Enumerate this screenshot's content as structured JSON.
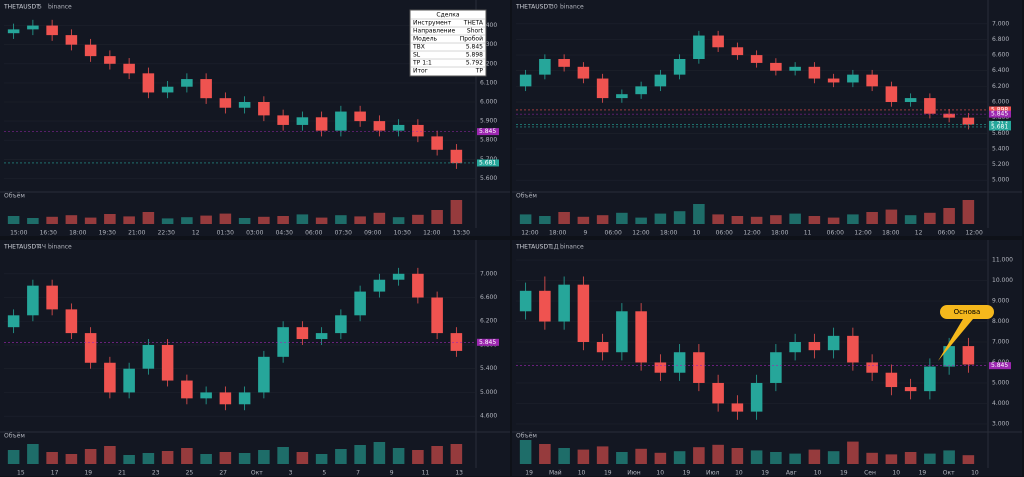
{
  "chart_data": [
    {
      "type": "candlestick",
      "symbol": "THETAUSDT",
      "interval": "5",
      "exchange": "binance",
      "volume_label": "Объём",
      "up_color": "#26a69a",
      "down_color": "#ef5350",
      "open": [
        6.36,
        6.38,
        6.4,
        6.35,
        6.3,
        6.24,
        6.2,
        6.15,
        6.05,
        6.08,
        6.12,
        6.02,
        5.97,
        6.0,
        5.93,
        5.88,
        5.92,
        5.85,
        5.95,
        5.9,
        5.85,
        5.88,
        5.82,
        5.75
      ],
      "high": [
        6.41,
        6.43,
        6.43,
        6.38,
        6.33,
        6.27,
        6.23,
        6.18,
        6.11,
        6.15,
        6.15,
        6.05,
        6.03,
        6.03,
        5.96,
        5.95,
        5.95,
        5.98,
        5.98,
        5.93,
        5.91,
        5.91,
        5.85,
        5.78
      ],
      "low": [
        6.33,
        6.35,
        6.32,
        6.27,
        6.21,
        6.17,
        6.12,
        6.02,
        6.02,
        6.05,
        5.99,
        5.94,
        5.94,
        5.9,
        5.85,
        5.85,
        5.82,
        5.82,
        5.87,
        5.82,
        5.82,
        5.79,
        5.72,
        5.65
      ],
      "close": [
        6.38,
        6.4,
        6.35,
        6.3,
        6.24,
        6.2,
        6.15,
        6.05,
        6.08,
        6.12,
        6.02,
        5.97,
        6.0,
        5.93,
        5.88,
        5.92,
        5.85,
        5.95,
        5.9,
        5.85,
        5.88,
        5.82,
        5.75,
        5.68
      ],
      "volume": [
        20,
        15,
        18,
        22,
        16,
        25,
        19,
        30,
        14,
        17,
        21,
        26,
        15,
        18,
        20,
        24,
        16,
        22,
        19,
        28,
        17,
        23,
        35,
        60
      ],
      "volume_ylim": [
        0,
        70
      ],
      "ylim": [
        5.55,
        6.45
      ],
      "yticks": [
        {
          "value": 5.6,
          "label": "5.600"
        },
        {
          "value": 5.7,
          "label": "5.700"
        },
        {
          "value": 5.8,
          "label": "5.800"
        },
        {
          "value": 5.9,
          "label": "5.900"
        },
        {
          "value": 6.0,
          "label": "6.000"
        },
        {
          "value": 6.1,
          "label": "6.100"
        },
        {
          "value": 6.2,
          "label": "6.200"
        },
        {
          "value": 6.3,
          "label": "6.300"
        },
        {
          "value": 6.4,
          "label": "6.400"
        }
      ],
      "price_labels": [
        {
          "value": 5.845,
          "label": "5.845",
          "color": "#9c27b0"
        },
        {
          "value": 5.681,
          "label": "5.681",
          "color": "#26a69a"
        }
      ],
      "x_labels": [
        "15:00",
        "16:30",
        "18:00",
        "19:30",
        "21:00",
        "22:30",
        "12",
        "01:30",
        "03:00",
        "04:30",
        "06:00",
        "07:30",
        "09:00",
        "10:30",
        "12:00",
        "13:30"
      ],
      "table": {
        "title": "Сделка",
        "rows": [
          [
            "Инструмент",
            "THETA"
          ],
          [
            "Направление",
            "Short"
          ],
          [
            "Модель",
            "Пробой"
          ],
          [
            "ТВХ",
            "5.845"
          ],
          [
            "SL",
            "5.898"
          ],
          [
            "TP 1:1",
            "5.792"
          ],
          [
            "Итог",
            "TP"
          ]
        ]
      }
    },
    {
      "type": "candlestick",
      "symbol": "THETAUSDT",
      "interval": "30",
      "exchange": "binance",
      "volume_label": "Объём",
      "up_color": "#26a69a",
      "down_color": "#ef5350",
      "open": [
        6.2,
        6.35,
        6.55,
        6.45,
        6.3,
        6.05,
        6.1,
        6.2,
        6.35,
        6.55,
        6.85,
        6.7,
        6.6,
        6.5,
        6.4,
        6.45,
        6.3,
        6.25,
        6.35,
        6.2,
        6.0,
        6.05,
        5.85,
        5.8
      ],
      "high": [
        6.41,
        6.61,
        6.61,
        6.51,
        6.36,
        6.16,
        6.26,
        6.41,
        6.61,
        6.91,
        6.91,
        6.76,
        6.66,
        6.56,
        6.51,
        6.51,
        6.36,
        6.41,
        6.41,
        6.26,
        6.11,
        6.11,
        5.91,
        5.86
      ],
      "low": [
        6.14,
        6.29,
        6.39,
        6.24,
        5.99,
        5.99,
        6.04,
        6.14,
        6.29,
        6.49,
        6.64,
        6.54,
        6.44,
        6.34,
        6.34,
        6.24,
        6.19,
        6.19,
        6.14,
        5.94,
        5.94,
        5.79,
        5.74,
        5.65
      ],
      "close": [
        6.35,
        6.55,
        6.45,
        6.3,
        6.05,
        6.1,
        6.2,
        6.35,
        6.55,
        6.85,
        6.7,
        6.6,
        6.5,
        6.4,
        6.45,
        6.3,
        6.25,
        6.35,
        6.2,
        6.0,
        6.05,
        5.85,
        5.8,
        5.71
      ],
      "volume": [
        12,
        10,
        15,
        9,
        11,
        14,
        8,
        13,
        16,
        25,
        12,
        10,
        9,
        11,
        13,
        10,
        8,
        12,
        15,
        18,
        11,
        14,
        20,
        30
      ],
      "volume_ylim": [
        0,
        35
      ],
      "ylim": [
        4.9,
        7.1
      ],
      "yticks": [
        {
          "value": 5.0,
          "label": "5.000"
        },
        {
          "value": 5.2,
          "label": "5.200"
        },
        {
          "value": 5.4,
          "label": "5.400"
        },
        {
          "value": 5.6,
          "label": "5.600"
        },
        {
          "value": 5.8,
          "label": "5.800"
        },
        {
          "value": 6.0,
          "label": "6.000"
        },
        {
          "value": 6.2,
          "label": "6.200"
        },
        {
          "value": 6.4,
          "label": "6.400"
        },
        {
          "value": 6.6,
          "label": "6.600"
        },
        {
          "value": 6.8,
          "label": "6.800"
        },
        {
          "value": 7.0,
          "label": "7.000"
        }
      ],
      "price_labels": [
        {
          "value": 5.898,
          "label": "5.898",
          "color": "#ef5350"
        },
        {
          "value": 5.845,
          "label": "5.845",
          "color": "#9c27b0"
        },
        {
          "value": 5.714,
          "label": "5.714",
          "color": "#26a69a"
        },
        {
          "value": 5.681,
          "label": "5.681",
          "color": "#26a69a"
        }
      ],
      "x_labels": [
        "12:00",
        "18:00",
        "9",
        "06:00",
        "12:00",
        "18:00",
        "10",
        "06:00",
        "12:00",
        "18:00",
        "11",
        "06:00",
        "12:00",
        "18:00",
        "12",
        "06:00",
        "12:00"
      ]
    },
    {
      "type": "candlestick",
      "symbol": "THETAUSDT",
      "interval": "4Ч",
      "exchange": "binance",
      "volume_label": "Объём",
      "up_color": "#26a69a",
      "down_color": "#ef5350",
      "open": [
        6.1,
        6.3,
        6.8,
        6.4,
        6.0,
        5.5,
        5.0,
        5.4,
        5.8,
        5.2,
        4.9,
        5.0,
        4.8,
        5.0,
        5.6,
        6.1,
        5.9,
        6.0,
        6.3,
        6.7,
        6.9,
        7.0,
        6.6,
        6.0
      ],
      "high": [
        6.4,
        6.9,
        6.9,
        6.5,
        6.1,
        5.6,
        5.5,
        5.9,
        5.9,
        5.3,
        5.1,
        5.1,
        5.1,
        5.7,
        6.2,
        6.2,
        6.1,
        6.4,
        6.8,
        7.0,
        7.1,
        7.1,
        6.7,
        6.1
      ],
      "low": [
        6.0,
        6.2,
        6.3,
        5.9,
        5.4,
        4.9,
        4.9,
        5.3,
        5.1,
        4.8,
        4.8,
        4.7,
        4.7,
        4.9,
        5.5,
        5.8,
        5.8,
        5.9,
        6.2,
        6.6,
        6.8,
        6.5,
        5.9,
        5.6
      ],
      "close": [
        6.3,
        6.8,
        6.4,
        6.0,
        5.5,
        5.0,
        5.4,
        5.8,
        5.2,
        4.9,
        5.0,
        4.8,
        5.0,
        5.6,
        6.1,
        5.9,
        6.0,
        6.3,
        6.7,
        6.9,
        7.0,
        6.6,
        6.0,
        5.7
      ],
      "volume": [
        14,
        20,
        12,
        10,
        15,
        18,
        9,
        11,
        13,
        16,
        10,
        12,
        11,
        14,
        17,
        12,
        10,
        15,
        19,
        22,
        16,
        14,
        18,
        20
      ],
      "volume_ylim": [
        0,
        28
      ],
      "ylim": [
        4.4,
        7.3
      ],
      "yticks": [
        {
          "value": 4.6,
          "label": "4.600"
        },
        {
          "value": 5.0,
          "label": "5.000"
        },
        {
          "value": 5.4,
          "label": "5.400"
        },
        {
          "value": 5.8,
          "label": "5.800"
        },
        {
          "value": 6.2,
          "label": "6.200"
        },
        {
          "value": 6.6,
          "label": "6.600"
        },
        {
          "value": 7.0,
          "label": "7.000"
        }
      ],
      "price_labels": [
        {
          "value": 5.845,
          "label": "5.845",
          "color": "#9c27b0"
        }
      ],
      "x_labels": [
        "15",
        "17",
        "19",
        "21",
        "23",
        "25",
        "27",
        "Окт",
        "3",
        "5",
        "7",
        "9",
        "11",
        "13"
      ]
    },
    {
      "type": "candlestick",
      "symbol": "THETAUSDT",
      "interval": "1Д",
      "exchange": "binance",
      "volume_label": "Объём",
      "up_color": "#26a69a",
      "down_color": "#ef5350",
      "open": [
        8.5,
        9.5,
        8.0,
        9.8,
        7.0,
        6.5,
        8.5,
        6.0,
        5.5,
        6.5,
        5.0,
        4.0,
        3.6,
        5.0,
        6.5,
        7.0,
        6.6,
        7.3,
        6.0,
        5.5,
        4.8,
        4.6,
        5.8,
        6.8
      ],
      "high": [
        9.9,
        10.2,
        10.2,
        10.2,
        7.4,
        8.9,
        8.9,
        6.4,
        6.9,
        6.9,
        5.4,
        4.4,
        5.4,
        6.9,
        7.4,
        7.4,
        7.7,
        7.7,
        6.4,
        5.9,
        5.2,
        6.2,
        7.2,
        7.2
      ],
      "low": [
        8.1,
        7.6,
        7.6,
        6.6,
        6.1,
        6.1,
        5.6,
        5.1,
        5.1,
        4.6,
        3.6,
        3.2,
        3.2,
        4.6,
        6.1,
        6.2,
        6.2,
        5.6,
        5.1,
        4.4,
        4.2,
        4.2,
        5.4,
        5.5
      ],
      "close": [
        9.5,
        8.0,
        9.8,
        7.0,
        6.5,
        8.5,
        6.0,
        5.5,
        6.5,
        5.0,
        4.0,
        3.6,
        5.0,
        6.5,
        7.0,
        6.6,
        7.3,
        6.0,
        5.5,
        4.8,
        4.6,
        5.8,
        6.8,
        5.9
      ],
      "volume": [
        30,
        25,
        20,
        18,
        22,
        15,
        19,
        14,
        16,
        21,
        24,
        20,
        17,
        15,
        13,
        18,
        16,
        28,
        14,
        12,
        15,
        13,
        17,
        11
      ],
      "volume_ylim": [
        0,
        35
      ],
      "ylim": [
        2.8,
        11.2
      ],
      "yticks": [
        {
          "value": 3,
          "label": "3.000"
        },
        {
          "value": 4,
          "label": "4.000"
        },
        {
          "value": 5,
          "label": "5.000"
        },
        {
          "value": 6,
          "label": "6.000"
        },
        {
          "value": 7,
          "label": "7.000"
        },
        {
          "value": 8,
          "label": "8.000"
        },
        {
          "value": 9,
          "label": "9.000"
        },
        {
          "value": 10,
          "label": "10.000"
        },
        {
          "value": 11,
          "label": "11.000"
        }
      ],
      "price_labels": [
        {
          "value": 5.845,
          "label": "5.845",
          "color": "#9c27b0"
        }
      ],
      "x_labels": [
        "19",
        "Май",
        "10",
        "19",
        "Июн",
        "10",
        "19",
        "Июл",
        "10",
        "19",
        "Авг",
        "10",
        "19",
        "Сен",
        "10",
        "19",
        "Окт",
        "10"
      ],
      "annotation": "Основа"
    }
  ]
}
